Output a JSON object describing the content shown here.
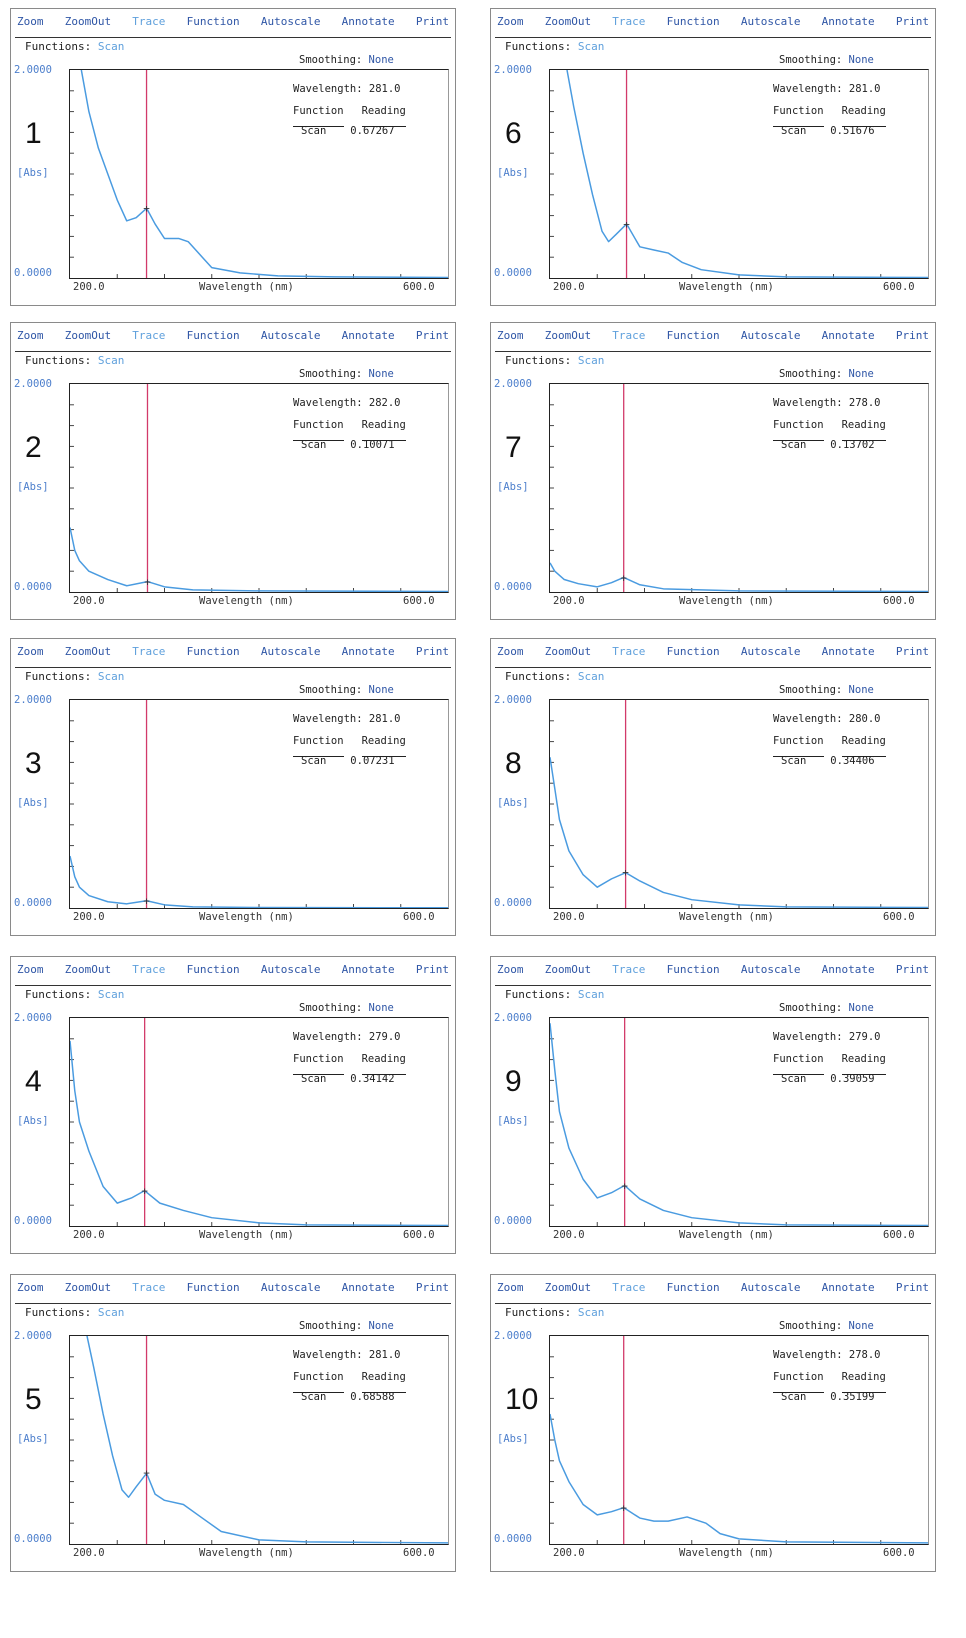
{
  "menu": [
    "Zoom",
    "ZoomOut",
    "Trace",
    "Function",
    "Autoscale",
    "Annotate",
    "Print"
  ],
  "functions_label": "Functions:",
  "functions_value": "Scan",
  "smoothing_label": "Smoothing:",
  "smoothing_value": "None",
  "wavelength_label": "Wavelength:",
  "function_header": "Function",
  "reading_header": "Reading",
  "y_max_label": "2.0000",
  "y_min_label": "0.0000",
  "y_unit": "[Abs]",
  "x_min_label": "200.0",
  "x_max_label": "600.0",
  "x_axis_label": "Wavelength (nm)",
  "colors": {
    "menu": "#2f56a6",
    "menu_accent": "#5fa0dc",
    "trace": "#4a9be0",
    "cursor": "#d23a6a"
  },
  "chart_data": [
    {
      "type": "line",
      "panel_label": "1",
      "cursor_wavelength": "281.0",
      "function": "Scan",
      "reading": "0.67267",
      "xlim": [
        200,
        600
      ],
      "ylim": [
        0,
        2
      ],
      "x": [
        212,
        220,
        230,
        240,
        250,
        260,
        270,
        281,
        290,
        300,
        315,
        325,
        340,
        350,
        380,
        420,
        480,
        600
      ],
      "y": [
        2.0,
        1.6,
        1.25,
        1.0,
        0.75,
        0.55,
        0.58,
        0.67,
        0.52,
        0.38,
        0.38,
        0.35,
        0.2,
        0.1,
        0.05,
        0.02,
        0.01,
        0.005
      ]
    },
    {
      "type": "line",
      "panel_label": "2",
      "cursor_wavelength": "282.0",
      "function": "Scan",
      "reading": "0.10071",
      "xlim": [
        200,
        600
      ],
      "ylim": [
        0,
        2
      ],
      "x": [
        200,
        205,
        210,
        220,
        240,
        260,
        282,
        300,
        330,
        400,
        600
      ],
      "y": [
        0.62,
        0.4,
        0.3,
        0.2,
        0.12,
        0.06,
        0.1,
        0.05,
        0.02,
        0.01,
        0.005
      ]
    },
    {
      "type": "line",
      "panel_label": "3",
      "cursor_wavelength": "281.0",
      "function": "Scan",
      "reading": "0.07231",
      "xlim": [
        200,
        600
      ],
      "ylim": [
        0,
        2
      ],
      "x": [
        200,
        205,
        210,
        220,
        240,
        260,
        281,
        300,
        330,
        400,
        600
      ],
      "y": [
        0.5,
        0.3,
        0.2,
        0.12,
        0.06,
        0.04,
        0.07,
        0.03,
        0.01,
        0.005,
        0.002
      ]
    },
    {
      "type": "line",
      "panel_label": "4",
      "cursor_wavelength": "279.0",
      "function": "Scan",
      "reading": "0.34142",
      "xlim": [
        200,
        600
      ],
      "ylim": [
        0,
        2
      ],
      "x": [
        200,
        205,
        210,
        220,
        235,
        250,
        265,
        279,
        295,
        320,
        350,
        400,
        450,
        600
      ],
      "y": [
        1.78,
        1.3,
        1.0,
        0.72,
        0.38,
        0.22,
        0.27,
        0.34,
        0.22,
        0.15,
        0.08,
        0.03,
        0.01,
        0.005
      ]
    },
    {
      "type": "line",
      "panel_label": "5",
      "cursor_wavelength": "281.0",
      "function": "Scan",
      "reading": "0.68588",
      "xlim": [
        200,
        600
      ],
      "ylim": [
        0,
        2
      ],
      "x": [
        218,
        225,
        235,
        245,
        255,
        262,
        270,
        281,
        290,
        300,
        320,
        340,
        360,
        400,
        450,
        600
      ],
      "y": [
        2.0,
        1.7,
        1.25,
        0.85,
        0.52,
        0.45,
        0.55,
        0.68,
        0.48,
        0.42,
        0.38,
        0.25,
        0.12,
        0.04,
        0.02,
        0.01
      ]
    },
    {
      "type": "line",
      "panel_label": "6",
      "cursor_wavelength": "281.0",
      "function": "Scan",
      "reading": "0.51676",
      "xlim": [
        200,
        600
      ],
      "ylim": [
        0,
        2
      ],
      "x": [
        218,
        225,
        235,
        245,
        255,
        262,
        270,
        281,
        295,
        310,
        325,
        340,
        360,
        400,
        450,
        600
      ],
      "y": [
        2.0,
        1.65,
        1.2,
        0.8,
        0.45,
        0.35,
        0.42,
        0.52,
        0.3,
        0.27,
        0.24,
        0.15,
        0.08,
        0.03,
        0.01,
        0.005
      ]
    },
    {
      "type": "line",
      "panel_label": "7",
      "cursor_wavelength": "278.0",
      "function": "Scan",
      "reading": "0.13702",
      "xlim": [
        200,
        600
      ],
      "ylim": [
        0,
        2
      ],
      "x": [
        200,
        205,
        215,
        230,
        250,
        265,
        278,
        295,
        320,
        400,
        600
      ],
      "y": [
        0.28,
        0.2,
        0.12,
        0.08,
        0.05,
        0.09,
        0.14,
        0.07,
        0.03,
        0.01,
        0.005
      ]
    },
    {
      "type": "line",
      "panel_label": "8",
      "cursor_wavelength": "280.0",
      "function": "Scan",
      "reading": "0.34406",
      "xlim": [
        200,
        600
      ],
      "ylim": [
        0,
        2
      ],
      "x": [
        200,
        205,
        210,
        220,
        235,
        250,
        265,
        280,
        295,
        320,
        350,
        400,
        450,
        600
      ],
      "y": [
        1.45,
        1.15,
        0.85,
        0.55,
        0.32,
        0.2,
        0.28,
        0.34,
        0.26,
        0.15,
        0.08,
        0.03,
        0.01,
        0.005
      ]
    },
    {
      "type": "line",
      "panel_label": "9",
      "cursor_wavelength": "279.0",
      "function": "Scan",
      "reading": "0.39059",
      "xlim": [
        200,
        600
      ],
      "ylim": [
        0,
        2
      ],
      "x": [
        200,
        205,
        210,
        220,
        235,
        250,
        265,
        279,
        295,
        320,
        350,
        400,
        450,
        600
      ],
      "y": [
        1.95,
        1.5,
        1.1,
        0.75,
        0.45,
        0.27,
        0.32,
        0.39,
        0.26,
        0.15,
        0.08,
        0.03,
        0.01,
        0.005
      ]
    },
    {
      "type": "line",
      "panel_label": "10",
      "cursor_wavelength": "278.0",
      "function": "Scan",
      "reading": "0.35199",
      "xlim": [
        200,
        600
      ],
      "ylim": [
        0,
        2
      ],
      "x": [
        200,
        205,
        210,
        220,
        235,
        250,
        265,
        278,
        295,
        310,
        325,
        345,
        365,
        380,
        400,
        450,
        600
      ],
      "y": [
        1.25,
        1.0,
        0.8,
        0.6,
        0.38,
        0.28,
        0.31,
        0.35,
        0.25,
        0.22,
        0.22,
        0.26,
        0.2,
        0.1,
        0.05,
        0.02,
        0.01
      ]
    }
  ]
}
